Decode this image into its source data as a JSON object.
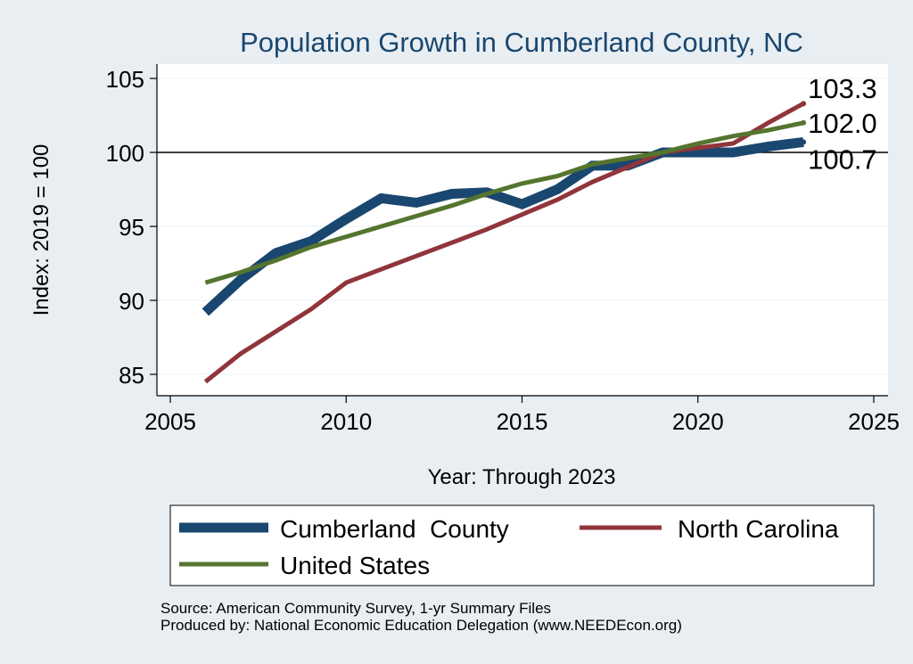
{
  "chart_data": {
    "type": "line",
    "title": "Population Growth in Cumberland County, NC",
    "xlabel": "Year: Through 2023",
    "ylabel": "Index: 2019 = 100",
    "xlim": [
      2005,
      2025
    ],
    "ylim": [
      84,
      105.5
    ],
    "xticks": [
      2005,
      2010,
      2015,
      2020,
      2025
    ],
    "yticks": [
      85,
      90,
      95,
      100,
      105
    ],
    "reference_line": 100,
    "x": [
      2006,
      2007,
      2008,
      2009,
      2010,
      2011,
      2012,
      2013,
      2014,
      2015,
      2016,
      2017,
      2018,
      2019,
      2020,
      2021,
      2022,
      2023
    ],
    "series": [
      {
        "name": "Cumberland  County",
        "color": "#1a476f",
        "values": [
          89.2,
          91.4,
          93.2,
          94.0,
          95.5,
          96.9,
          96.6,
          97.2,
          97.3,
          96.5,
          97.5,
          99.1,
          99.1,
          100.0,
          100.0,
          100.0,
          100.4,
          100.7
        ],
        "end_label": "100.7"
      },
      {
        "name": "North Carolina",
        "color": "#90353b",
        "values": [
          84.5,
          86.4,
          87.9,
          89.4,
          91.2,
          92.1,
          93.0,
          93.9,
          94.8,
          95.8,
          96.8,
          98.0,
          99.0,
          100.0,
          100.3,
          100.6,
          102.0,
          103.3
        ],
        "end_label": "103.3"
      },
      {
        "name": "United States",
        "color": "#55752f",
        "values": [
          91.2,
          91.9,
          92.7,
          93.6,
          94.3,
          95.0,
          95.7,
          96.4,
          97.2,
          97.9,
          98.4,
          99.2,
          99.6,
          100.0,
          100.6,
          101.1,
          101.5,
          102.0
        ],
        "end_label": "102.0"
      }
    ],
    "legend": {
      "position": "bottom",
      "entries": [
        "Cumberland  County",
        "North Carolina",
        "United States"
      ]
    },
    "notes": [
      "Source: American Community Survey, 1-yr Summary Files",
      "Produced by: National Economic Education Delegation (www.NEEDEcon.org)"
    ]
  }
}
